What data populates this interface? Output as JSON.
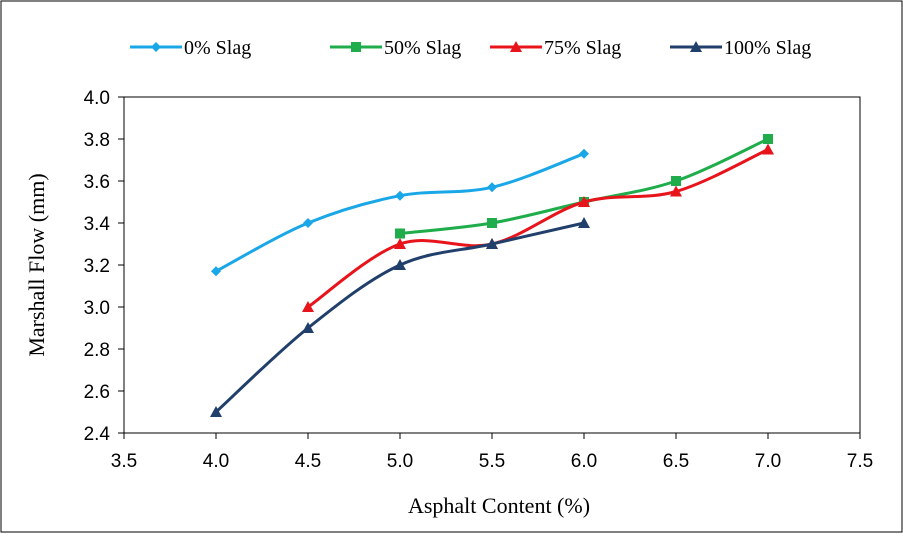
{
  "chart_data": {
    "type": "line",
    "title": "",
    "xlabel": "Asphalt Content (%)",
    "ylabel": "Marshall Flow (mm)",
    "xlim": [
      3.5,
      7.5
    ],
    "ylim": [
      2.4,
      4.0
    ],
    "x_ticks": [
      "3.5",
      "4.0",
      "4.5",
      "5.0",
      "5.5",
      "6.0",
      "6.5",
      "7.0",
      "7.5"
    ],
    "y_ticks": [
      "2.4",
      "2.6",
      "2.8",
      "3.0",
      "3.2",
      "3.4",
      "3.6",
      "3.8",
      "4.0"
    ],
    "grid": false,
    "legend_position": "top",
    "smooth": true,
    "series": [
      {
        "name": "0% Slag",
        "color": "#1aa7e8",
        "marker": "diamond",
        "points": [
          [
            4.0,
            3.17
          ],
          [
            4.5,
            3.4
          ],
          [
            5.0,
            3.53
          ],
          [
            5.5,
            3.57
          ],
          [
            6.0,
            3.73
          ]
        ]
      },
      {
        "name": "50% Slag",
        "color": "#1fad4b",
        "marker": "square",
        "points": [
          [
            5.0,
            3.35
          ],
          [
            5.5,
            3.4
          ],
          [
            6.0,
            3.5
          ],
          [
            6.5,
            3.6
          ],
          [
            7.0,
            3.8
          ]
        ]
      },
      {
        "name": "75% Slag",
        "color": "#e8141c",
        "marker": "triangle",
        "points": [
          [
            4.5,
            3.0
          ],
          [
            5.0,
            3.3
          ],
          [
            5.5,
            3.3
          ],
          [
            6.0,
            3.5
          ],
          [
            6.5,
            3.55
          ],
          [
            7.0,
            3.75
          ]
        ]
      },
      {
        "name": "100% Slag",
        "color": "#213f6b",
        "marker": "triangle",
        "points": [
          [
            4.0,
            2.5
          ],
          [
            4.5,
            2.9
          ],
          [
            5.0,
            3.2
          ],
          [
            5.5,
            3.3
          ],
          [
            6.0,
            3.4
          ]
        ]
      }
    ]
  }
}
